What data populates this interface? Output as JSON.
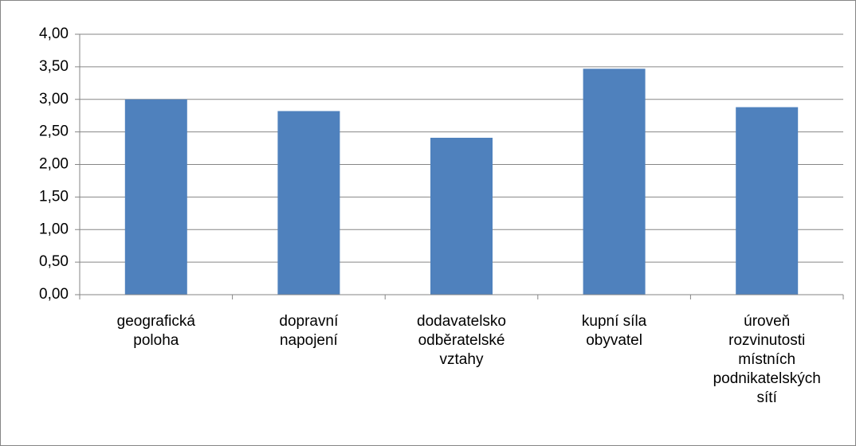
{
  "chart_data": {
    "type": "bar",
    "categories": [
      "geografická poloha",
      "dopravní napojení",
      "dodavatelsko odběratelské vztahy",
      "kupní síla obyvatel",
      "úroveň rozvinutosti místních podnikatelských sítí"
    ],
    "values": [
      3.0,
      2.82,
      2.41,
      3.47,
      2.88
    ],
    "color": "#4f81bd",
    "ylim": [
      0,
      4
    ],
    "yticks": [
      {
        "value": 0,
        "label": "0,00"
      },
      {
        "value": 0.5,
        "label": "0,50"
      },
      {
        "value": 1,
        "label": "1,00"
      },
      {
        "value": 1.5,
        "label": "1,50"
      },
      {
        "value": 2,
        "label": "2,00"
      },
      {
        "value": 2.5,
        "label": "2,50"
      },
      {
        "value": 3,
        "label": "3,00"
      },
      {
        "value": 3.5,
        "label": "3,50"
      },
      {
        "value": 4,
        "label": "4,00"
      }
    ],
    "grid": true
  }
}
